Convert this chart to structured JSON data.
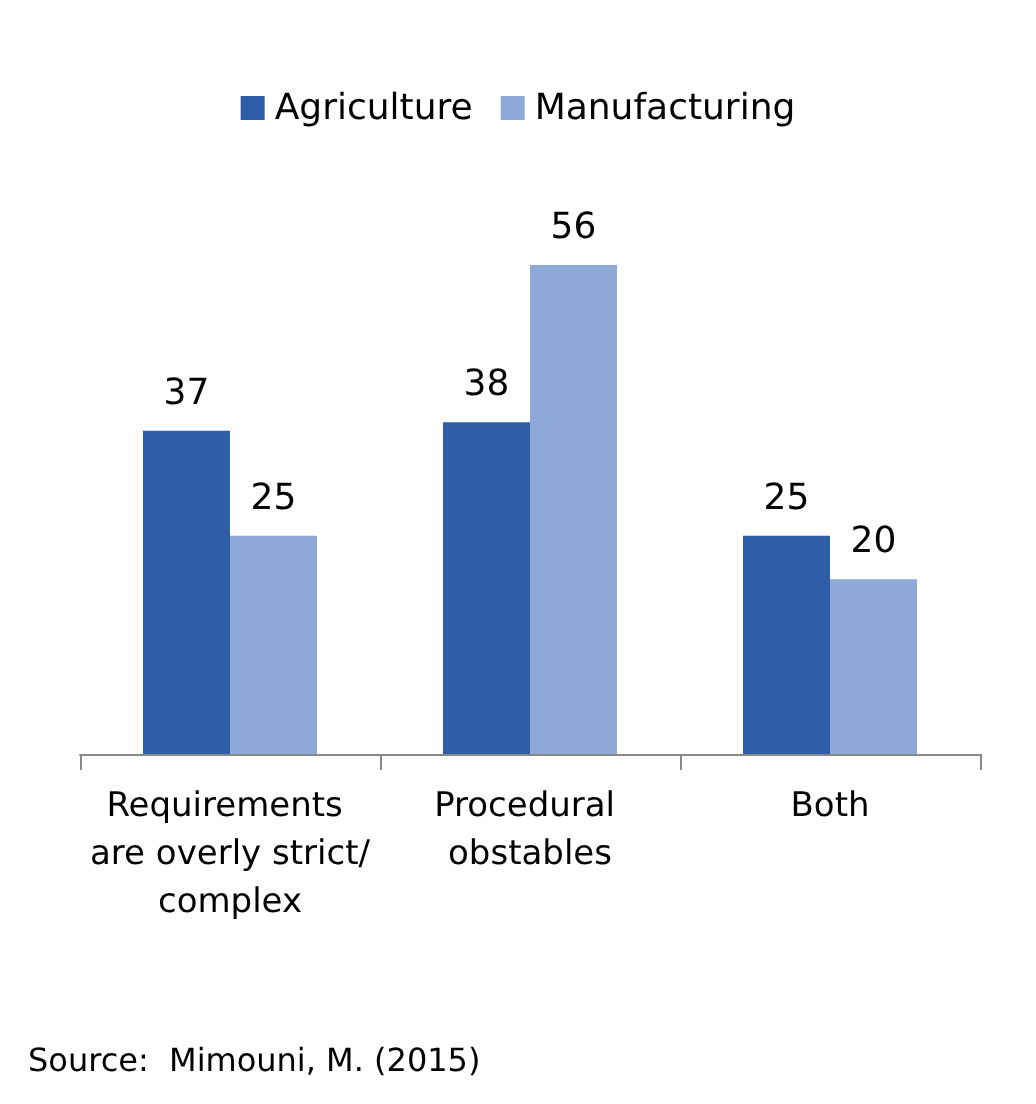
{
  "chart_data": {
    "type": "bar",
    "categories": [
      "Requirements are overly strict/complex",
      "Procedural obstables",
      "Both"
    ],
    "series": [
      {
        "name": "Agriculture",
        "color": "#2e5ea8",
        "values": [
          37,
          38,
          25
        ]
      },
      {
        "name": "Manufacturing",
        "color": "#8ea9d8",
        "values": [
          25,
          56,
          20
        ]
      }
    ],
    "data_labels": true,
    "legend": "top",
    "grid": false,
    "annotations": [
      "Source:  Mimouni, M. (2015)"
    ]
  }
}
